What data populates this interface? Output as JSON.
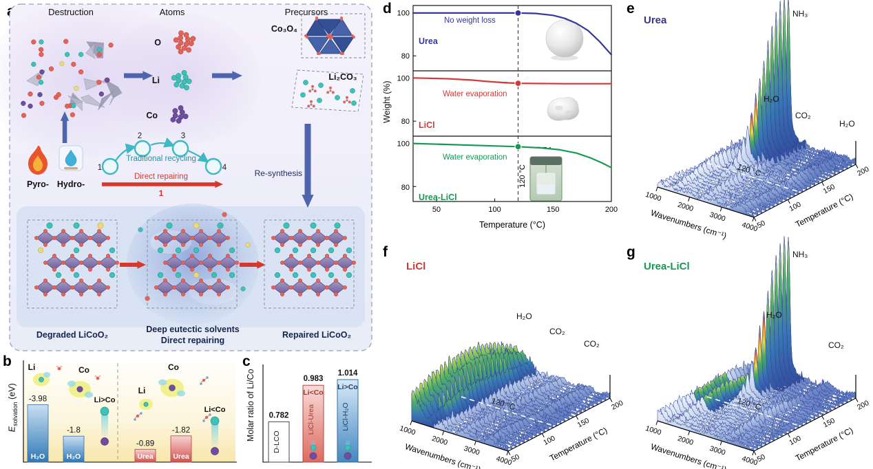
{
  "panels": {
    "a": {
      "label": "a",
      "stage1": "Destruction",
      "stage2": "Atoms",
      "stage3": "Precursors",
      "atom_o": "O",
      "atom_li": "Li",
      "atom_co": "Co",
      "precursor1": "Co₃O₄",
      "precursor2": "Li₂CO₃",
      "pyro": "Pyro-",
      "hydro": "Hydro-",
      "cycle_top": "Traditional recycling",
      "cycle_bottom": "Direct repairing",
      "steps": [
        "1",
        "2",
        "3",
        "4"
      ],
      "direct_step": "1",
      "resynthesis": "Re-synthesis",
      "bottom1": "Degraded LiCoO₂",
      "bottom2_line1": "Deep eutectic solvents",
      "bottom2_line2": "Direct repairing",
      "bottom3": "Repaired LiCoO₂"
    },
    "b": {
      "label": "b",
      "ylabel_e": "E",
      "ylabel_sub": "solvation",
      "ylabel_unit": "(eV)",
      "ion_li": "Li",
      "ion_co": "Co"
    },
    "c": {
      "label": "c"
    },
    "d": {
      "label": "d"
    },
    "e": {
      "label": "e"
    },
    "f": {
      "label": "f"
    },
    "g": {
      "label": "g"
    }
  },
  "colors": {
    "urea_blue": "#34389b",
    "licl_red": "#d23b36",
    "urea_licl_green": "#169a52",
    "lithium_teal": "#3fc1ba",
    "cobalt_purple": "#6d4f9e",
    "oxygen_red": "#e2635a",
    "arrow_blue": "#4e64ad",
    "arrow_red": "#d8382c"
  },
  "chart_data": [
    {
      "id": "b",
      "type": "bar",
      "ylabel": "E_solvation (eV)",
      "groups": [
        {
          "solvent": "H₂O",
          "relation": "Li>Co",
          "bars": [
            {
              "ion": "Li",
              "value": -3.98
            },
            {
              "ion": "Co",
              "value": -1.8
            }
          ]
        },
        {
          "solvent": "Urea",
          "relation": "Li<Co",
          "bars": [
            {
              "ion": "Li",
              "value": -0.89
            },
            {
              "ion": "Co",
              "value": -1.82
            }
          ]
        }
      ]
    },
    {
      "id": "c",
      "type": "bar",
      "ylabel": "Molar ratio of Li/Co",
      "categories": [
        "D-LCO",
        "LiCl-Urea",
        "LiCl-H₂O"
      ],
      "values": [
        0.782,
        0.983,
        1.014
      ],
      "relations": [
        "",
        "Li<Co",
        "Li>Co"
      ]
    },
    {
      "id": "d",
      "type": "line",
      "xlabel": "Temperature (°C)",
      "ylabel": "Weight (%)",
      "xlim": [
        30,
        200
      ],
      "xticks": [
        50,
        100,
        150,
        200
      ],
      "yticks": [
        100,
        80
      ],
      "marker": "120 °C",
      "series": [
        {
          "name": "Urea",
          "color": "#34389b",
          "annotation": "No weight loss",
          "dot": [
            120,
            100
          ],
          "points": [
            [
              30,
              100
            ],
            [
              90,
              100
            ],
            [
              120,
              100
            ],
            [
              135,
              99.8
            ],
            [
              150,
              98.9
            ],
            [
              160,
              97.5
            ],
            [
              170,
              95.2
            ],
            [
              180,
              91.8
            ],
            [
              190,
              86.6
            ],
            [
              200,
              80.5
            ]
          ]
        },
        {
          "name": "LiCl",
          "color": "#d23b36",
          "annotation": "Water evaporation",
          "dot": [
            120,
            97.7
          ],
          "points": [
            [
              30,
              100.2
            ],
            [
              60,
              99.8
            ],
            [
              80,
              99.2
            ],
            [
              95,
              98.5
            ],
            [
              110,
              97.9
            ],
            [
              120,
              97.7
            ],
            [
              135,
              97.6
            ],
            [
              160,
              97.5
            ],
            [
              200,
              97.5
            ]
          ],
          "guide": [
            [
              55,
              99.9
            ],
            [
              125,
              97.6
            ]
          ]
        },
        {
          "name": "Urea-LiCl",
          "color": "#169a52",
          "annotation": "Water evaporation",
          "dot": [
            120,
            98.6
          ],
          "points": [
            [
              30,
              100.1
            ],
            [
              60,
              99.6
            ],
            [
              90,
              99.1
            ],
            [
              120,
              98.6
            ],
            [
              140,
              98
            ],
            [
              155,
              97.2
            ],
            [
              170,
              95.6
            ],
            [
              182,
              93.4
            ],
            [
              192,
              91
            ],
            [
              200,
              88.8
            ]
          ],
          "guide": [
            [
              30,
              100
            ],
            [
              148,
              98.1
            ]
          ]
        }
      ]
    },
    {
      "id": "e",
      "type": "surface3d",
      "title": "Urea",
      "xlabel": "Wavenumbers (cm⁻¹)",
      "ylabel": "Temperature (°C)",
      "xticks": [
        1000,
        2000,
        3000,
        4000
      ],
      "yticks": [
        50,
        100,
        150,
        200
      ],
      "marker": "120 °C",
      "peak_labels": [
        "NH₃",
        "H₂O",
        "CO₂",
        "H₂O"
      ]
    },
    {
      "id": "f",
      "type": "surface3d",
      "title": "LiCl",
      "xlabel": "Wavenumbers (cm⁻¹)",
      "ylabel": "Temperature (°C)",
      "xticks": [
        1000,
        2000,
        3000,
        4000
      ],
      "yticks": [
        50,
        100,
        150,
        200
      ],
      "marker": "120 °C",
      "peak_labels": [
        "H₂O",
        "CO₂",
        "CO₂"
      ]
    },
    {
      "id": "g",
      "type": "surface3d",
      "title": "Urea-LiCl",
      "xlabel": "Wavenumbers (cm⁻¹)",
      "ylabel": "Temperature (°C)",
      "xticks": [
        1000,
        2000,
        3000,
        4000
      ],
      "yticks": [
        50,
        100,
        150,
        200
      ],
      "marker": "120 °C",
      "peak_labels": [
        "NH₃",
        "H₂O",
        "CO₂"
      ]
    }
  ]
}
